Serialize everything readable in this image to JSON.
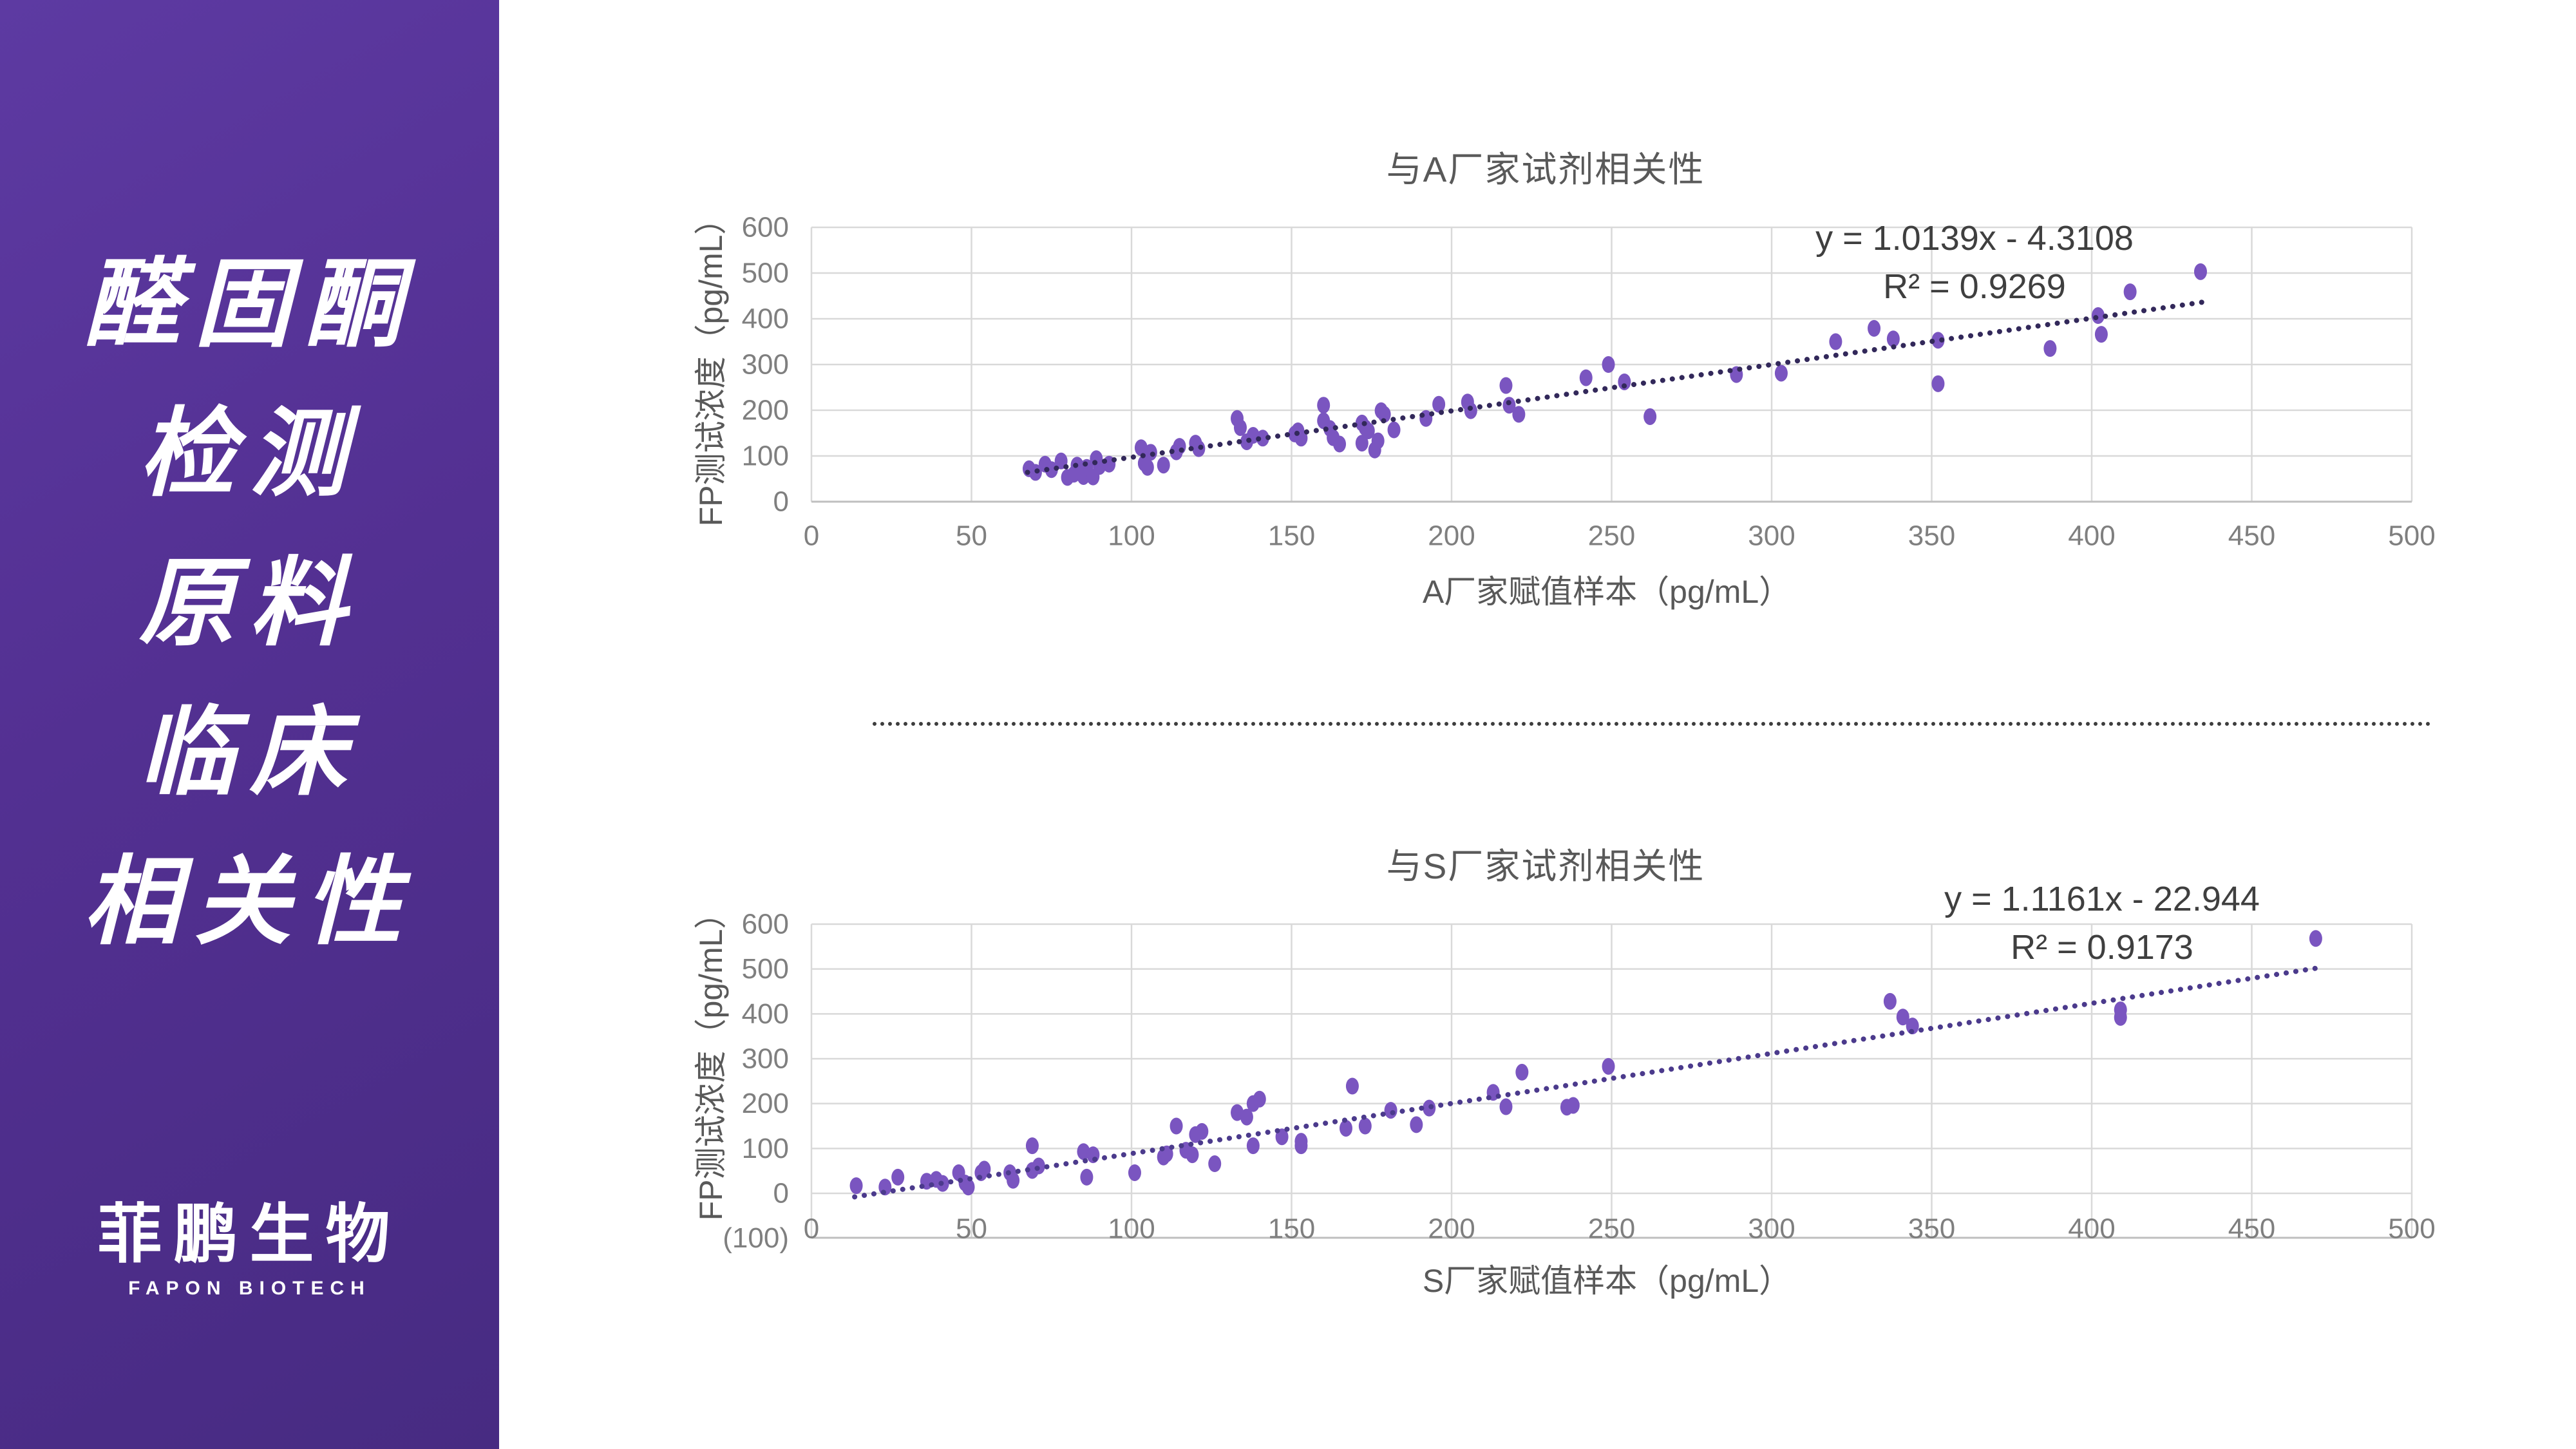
{
  "sidebar": {
    "title_lines": [
      "醛固酮",
      "检测",
      "原料",
      "临床",
      "相关性"
    ],
    "logo_cn": "菲鹏生物",
    "logo_en": "FAPON BIOTECH",
    "colors": {
      "bg_top": "#5d3aa2",
      "bg_bottom": "#472b82",
      "text": "#ffffff"
    }
  },
  "divider": {
    "style": "dotted"
  },
  "chart_data": [
    {
      "id": "a",
      "type": "scatter",
      "title": "与A厂家试剂相关性",
      "xlabel": "A厂家赋值样本（pg/mL）",
      "ylabel": "FP测试浓度（pg/mL）",
      "equation": "y = 1.0139x - 4.3108",
      "r2": "R² = 0.9269",
      "xlim": [
        0,
        500
      ],
      "ylim": [
        0,
        600
      ],
      "x_ticks": [
        0,
        50,
        100,
        150,
        200,
        250,
        300,
        350,
        400,
        450,
        500
      ],
      "y_ticks": [
        0,
        100,
        200,
        300,
        400,
        500,
        600
      ],
      "grid": true,
      "legend": false,
      "trend": {
        "slope": 1.0139,
        "intercept": -4.3108,
        "x_start": 67.5,
        "x_end": 436,
        "style": "dotted"
      },
      "colors": {
        "point": "#7a55c0",
        "trend": "#32285a",
        "gridline": "#d9d9d9",
        "axis": "#bfbfbf"
      },
      "points": [
        [
          68,
          72
        ],
        [
          70,
          64
        ],
        [
          73,
          82
        ],
        [
          75,
          70
        ],
        [
          78,
          89
        ],
        [
          80,
          53
        ],
        [
          82,
          60
        ],
        [
          83,
          80
        ],
        [
          84,
          67
        ],
        [
          85,
          55
        ],
        [
          86,
          75
        ],
        [
          88,
          54
        ],
        [
          89,
          94
        ],
        [
          90,
          77
        ],
        [
          93,
          82
        ],
        [
          103,
          118
        ],
        [
          104,
          84
        ],
        [
          105,
          75
        ],
        [
          106,
          108
        ],
        [
          110,
          80
        ],
        [
          114,
          109
        ],
        [
          115,
          121
        ],
        [
          120,
          128
        ],
        [
          121,
          116
        ],
        [
          133,
          182
        ],
        [
          134,
          162
        ],
        [
          136,
          131
        ],
        [
          138,
          145
        ],
        [
          141,
          139
        ],
        [
          151,
          148
        ],
        [
          152,
          155
        ],
        [
          153,
          139
        ],
        [
          160,
          211
        ],
        [
          160,
          177
        ],
        [
          162,
          160
        ],
        [
          163,
          140
        ],
        [
          165,
          126
        ],
        [
          172,
          172
        ],
        [
          172,
          128
        ],
        [
          173,
          162
        ],
        [
          174,
          155
        ],
        [
          176,
          113
        ],
        [
          177,
          133
        ],
        [
          178,
          199
        ],
        [
          179,
          191
        ],
        [
          182,
          157
        ],
        [
          192,
          182
        ],
        [
          196,
          213
        ],
        [
          205,
          218
        ],
        [
          206,
          199
        ],
        [
          217,
          254
        ],
        [
          218,
          211
        ],
        [
          221,
          191
        ],
        [
          242,
          271
        ],
        [
          249,
          300
        ],
        [
          254,
          262
        ],
        [
          262,
          186
        ],
        [
          289,
          278
        ],
        [
          303,
          281
        ],
        [
          320,
          350
        ],
        [
          332,
          379
        ],
        [
          338,
          356
        ],
        [
          352,
          353
        ],
        [
          352,
          258
        ],
        [
          387,
          335
        ],
        [
          402,
          407
        ],
        [
          403,
          366
        ],
        [
          412,
          459
        ],
        [
          434,
          503
        ]
      ]
    },
    {
      "id": "s",
      "type": "scatter",
      "title": "与S厂家试剂相关性",
      "xlabel": "S厂家赋值样本（pg/mL）",
      "ylabel": "FP测试浓度（pg/mL）",
      "equation": "y = 1.1161x - 22.944",
      "r2": "R² = 0.9173",
      "xlim": [
        0,
        500
      ],
      "ylim": [
        -100,
        600
      ],
      "x_ticks": [
        0,
        50,
        100,
        150,
        200,
        250,
        300,
        350,
        400,
        450,
        500
      ],
      "y_ticks": [
        0,
        100,
        200,
        300,
        400,
        500,
        600
      ],
      "neg_tick": {
        "value": -100,
        "label": "(100)",
        "color": "#ff0000"
      },
      "grid": true,
      "legend": false,
      "trend": {
        "slope": 1.1161,
        "intercept": -22.944,
        "x_start": 13.5,
        "x_end": 470,
        "style": "dotted"
      },
      "colors": {
        "point": "#7a55c0",
        "trend": "#4b3a8c",
        "gridline": "#d9d9d9",
        "axis": "#bfbfbf"
      },
      "points": [
        [
          14,
          17
        ],
        [
          23,
          14
        ],
        [
          27,
          36
        ],
        [
          36,
          27
        ],
        [
          39,
          31
        ],
        [
          41,
          22
        ],
        [
          46,
          46
        ],
        [
          48,
          23
        ],
        [
          49,
          14
        ],
        [
          53,
          46
        ],
        [
          54,
          54
        ],
        [
          62,
          46
        ],
        [
          63,
          29
        ],
        [
          69,
          106
        ],
        [
          69,
          51
        ],
        [
          71,
          61
        ],
        [
          85,
          93
        ],
        [
          86,
          36
        ],
        [
          88,
          86
        ],
        [
          101,
          46
        ],
        [
          110,
          81
        ],
        [
          111,
          88
        ],
        [
          114,
          150
        ],
        [
          117,
          96
        ],
        [
          119,
          86
        ],
        [
          120,
          131
        ],
        [
          122,
          138
        ],
        [
          126,
          66
        ],
        [
          133,
          180
        ],
        [
          136,
          170
        ],
        [
          138,
          106
        ],
        [
          138,
          200
        ],
        [
          140,
          210
        ],
        [
          147,
          126
        ],
        [
          153,
          116
        ],
        [
          153,
          106
        ],
        [
          167,
          145
        ],
        [
          169,
          239
        ],
        [
          173,
          150
        ],
        [
          181,
          185
        ],
        [
          189,
          153
        ],
        [
          193,
          190
        ],
        [
          213,
          225
        ],
        [
          217,
          193
        ],
        [
          222,
          270
        ],
        [
          236,
          192
        ],
        [
          238,
          196
        ],
        [
          249,
          283
        ],
        [
          337,
          428
        ],
        [
          341,
          393
        ],
        [
          344,
          373
        ],
        [
          409,
          409
        ],
        [
          409,
          392
        ],
        [
          470,
          568
        ]
      ]
    }
  ]
}
